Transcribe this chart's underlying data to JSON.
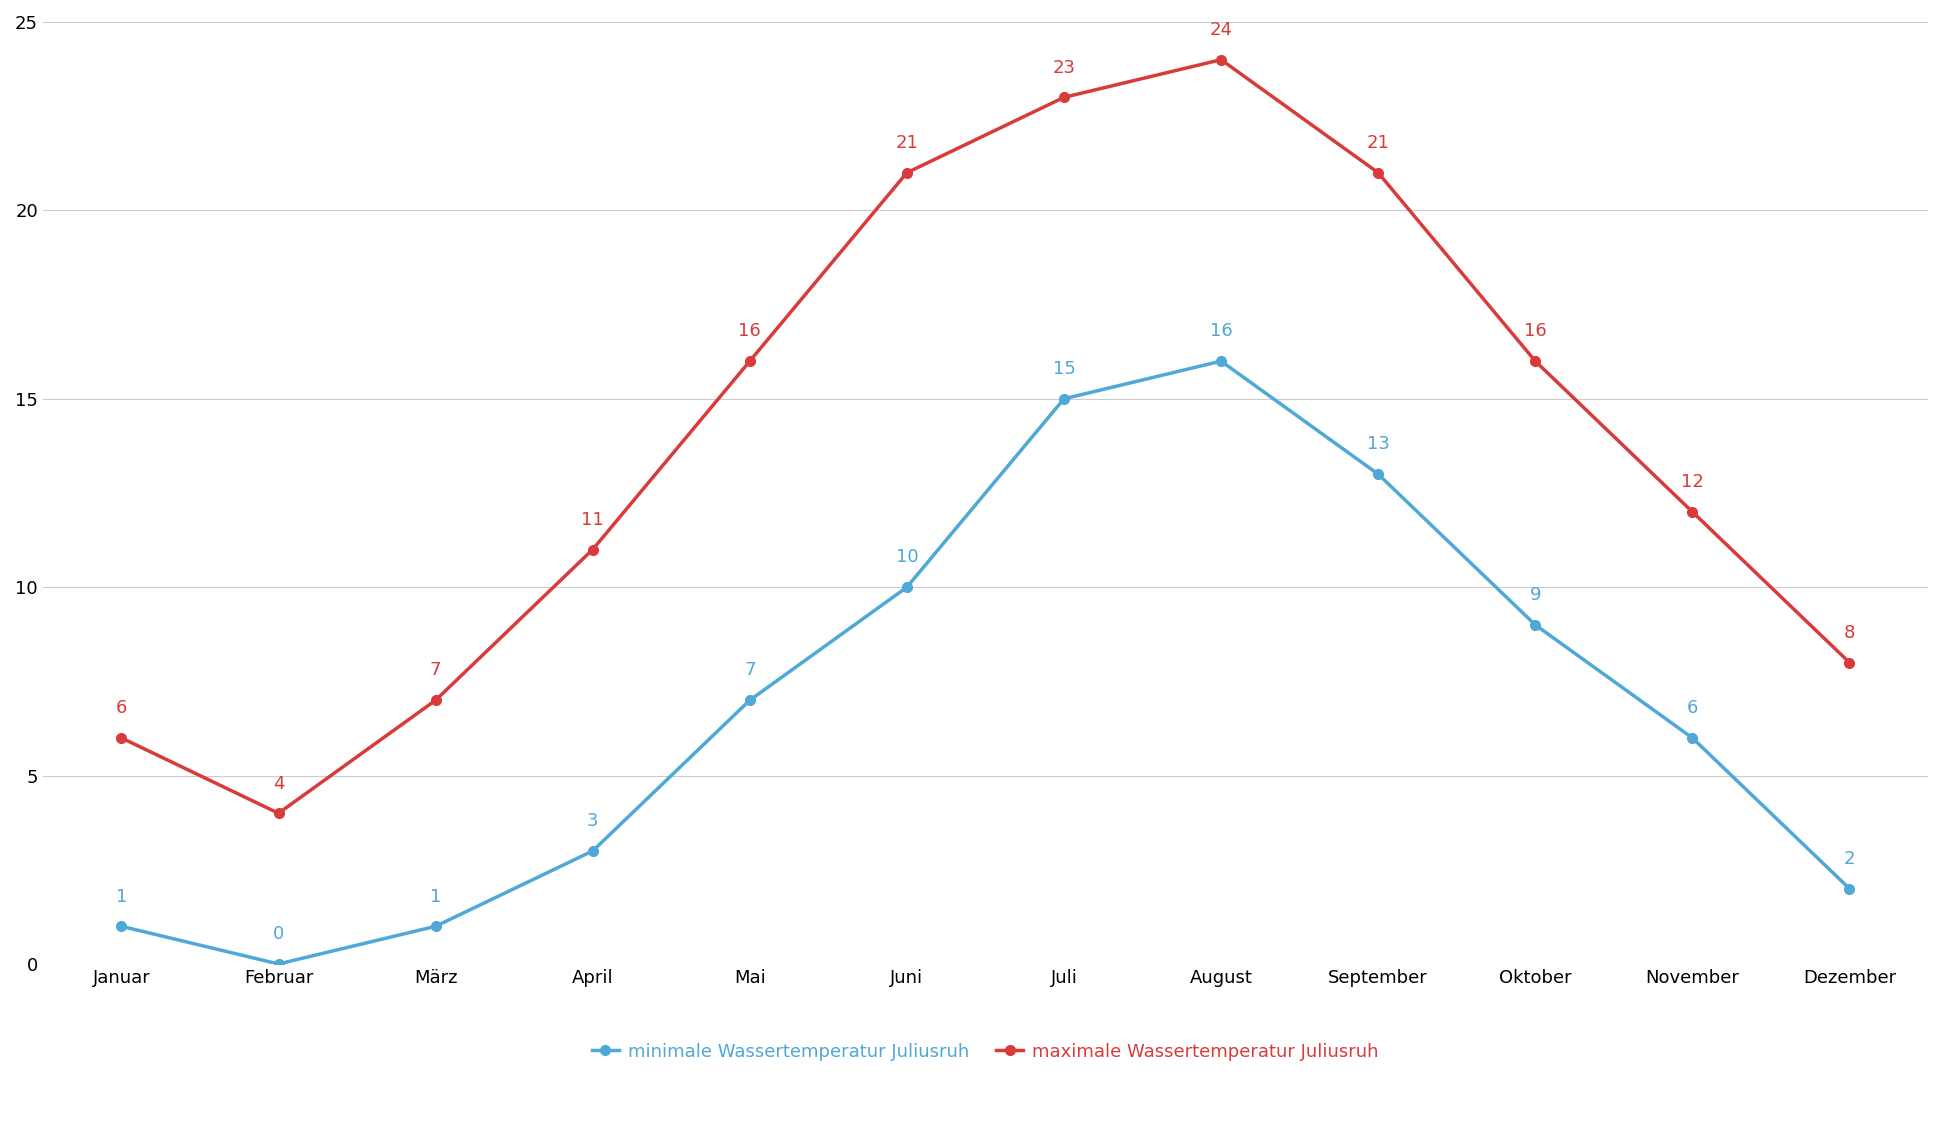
{
  "months": [
    "Januar",
    "Februar",
    "März",
    "April",
    "Mai",
    "Juni",
    "Juli",
    "August",
    "September",
    "Oktober",
    "November",
    "Dezember"
  ],
  "min_temps": [
    1,
    0,
    1,
    3,
    7,
    10,
    15,
    16,
    13,
    9,
    6,
    2
  ],
  "max_temps": [
    6,
    4,
    7,
    11,
    16,
    21,
    23,
    24,
    21,
    16,
    12,
    8
  ],
  "min_color": "#4fa8d5",
  "max_color": "#d93b3b",
  "min_label": "minimale Wassertemperatur Juliusruh",
  "max_label": "maximale Wassertemperatur Juliusruh",
  "ylim": [
    0,
    25
  ],
  "yticks": [
    0,
    5,
    10,
    15,
    20,
    25
  ],
  "background_color": "#ffffff",
  "grid_color": "#cccccc",
  "marker_style": "o",
  "marker_size": 7,
  "line_width": 2.5,
  "tick_fontsize": 13,
  "legend_fontsize": 13,
  "data_label_fontsize": 13
}
